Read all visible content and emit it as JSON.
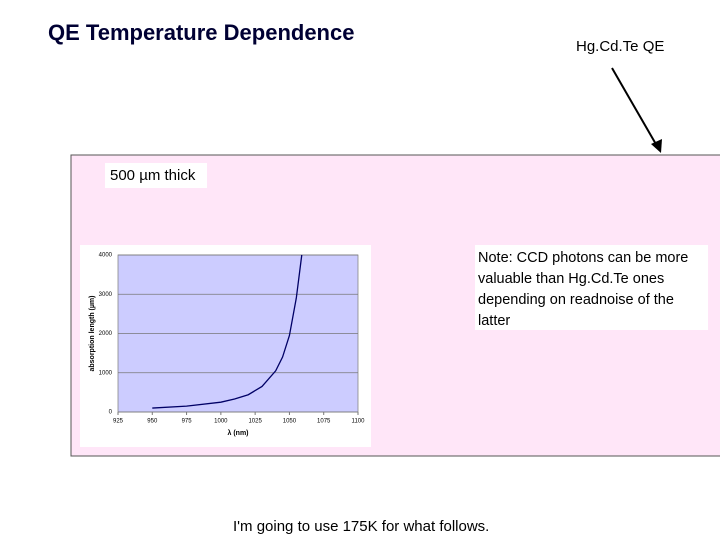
{
  "title": "QE Temperature Dependence",
  "arrow_label": "Hg.Cd.Te QE",
  "thickness_label": "500 µm thick",
  "note": "Note: CCD photons can be more valuable than Hg.Cd.Te ones depending on readnoise of the latter",
  "footer": "I'm going to use 175K for what follows.",
  "chart_data": {
    "type": "line",
    "x_label": "λ (nm)",
    "y_label": "absorption length (µm)",
    "x": [
      950,
      975,
      1000,
      1010,
      1020,
      1030,
      1040,
      1045,
      1050,
      1055,
      1059
    ],
    "values": [
      100,
      150,
      250,
      330,
      440,
      650,
      1050,
      1400,
      1950,
      2900,
      4000
    ],
    "color": "#000066",
    "background": "#ccccff",
    "xlim": [
      925,
      1100
    ],
    "xticks": [
      925,
      950,
      975,
      1000,
      1025,
      1050,
      1075,
      1100
    ],
    "ylim": [
      0,
      4000
    ],
    "yticks": [
      0,
      1000,
      2000,
      3000,
      4000
    ],
    "grid": true
  }
}
